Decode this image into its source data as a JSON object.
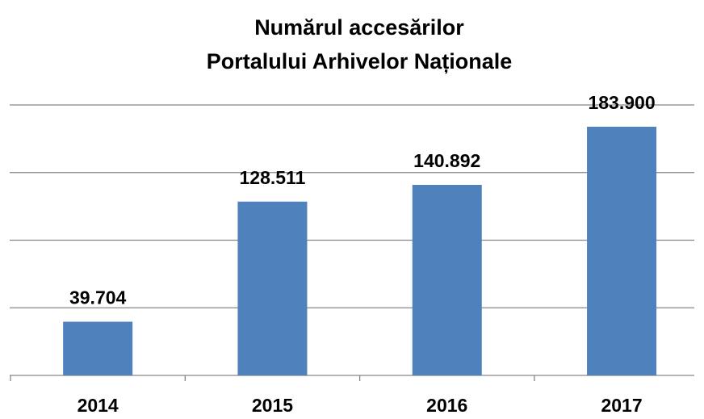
{
  "chart_data": {
    "type": "bar",
    "title": [
      "Numărul accesărilor",
      "Portalului Arhivelor Naționale"
    ],
    "categories": [
      "2014",
      "2015",
      "2016",
      "2017"
    ],
    "values": [
      39704,
      128511,
      140892,
      183900
    ],
    "value_labels": [
      "39.704",
      "128.511",
      "140.892",
      "183.900"
    ],
    "color": "#4f81bd",
    "ylim": [
      0,
      200000
    ],
    "yticks": [
      0,
      50000,
      100000,
      150000,
      200000
    ],
    "grid": true
  }
}
